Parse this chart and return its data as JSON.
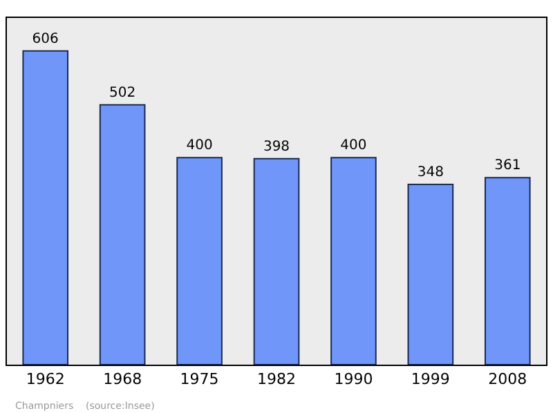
{
  "chart_data": {
    "type": "bar",
    "categories": [
      "1962",
      "1968",
      "1975",
      "1982",
      "1990",
      "1999",
      "2008"
    ],
    "values": [
      606,
      502,
      400,
      398,
      400,
      348,
      361
    ],
    "color": "#6f96f8",
    "data_labels": true,
    "grid": false,
    "annotations": [
      "Champniers    (source:Insee)"
    ]
  }
}
